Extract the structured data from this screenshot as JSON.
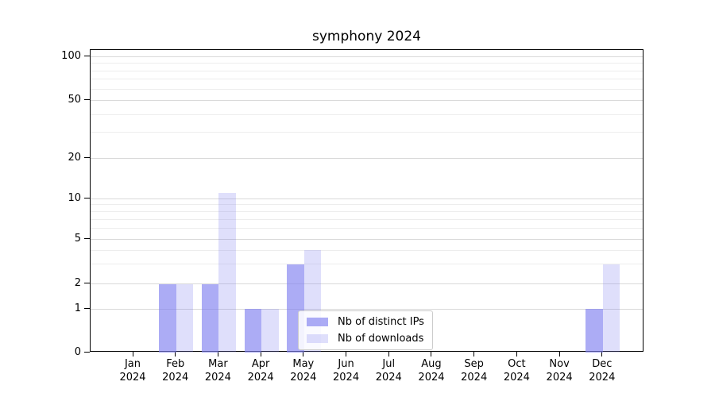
{
  "chart_data": {
    "type": "bar",
    "title": "symphony 2024",
    "categories": [
      "Jan",
      "Feb",
      "Mar",
      "Apr",
      "May",
      "Jun",
      "Jul",
      "Aug",
      "Sep",
      "Oct",
      "Nov",
      "Dec"
    ],
    "category_sublabel": "2024",
    "series": [
      {
        "name": "Nb of distinct IPs",
        "color": "rgba(128,128,240,0.65)",
        "values": [
          0,
          2,
          2,
          1,
          3,
          0,
          0,
          0,
          0,
          0,
          0,
          1
        ]
      },
      {
        "name": "Nb of downloads",
        "color": "rgba(128,128,240,0.25)",
        "values": [
          0,
          2,
          11,
          1,
          4,
          0,
          0,
          0,
          0,
          0,
          0,
          3
        ]
      }
    ],
    "y_axis": {
      "scale": "symlog",
      "major_ticks": [
        0,
        1,
        2,
        5,
        10,
        20,
        50,
        100
      ],
      "minor_gridlines": [
        3,
        4,
        6,
        7,
        8,
        9,
        30,
        40,
        60,
        70,
        80,
        90
      ],
      "range": [
        0,
        110
      ]
    },
    "x_axis": {
      "label_lines": 2
    },
    "legend": {
      "position": "lower center",
      "entries": [
        "Nb of distinct IPs",
        "Nb of downloads"
      ]
    },
    "grid": "horizontal",
    "colors": {
      "grid_major": "#d9d9d9",
      "grid_minor": "#ededed",
      "spine": "#000000",
      "background": "#ffffff"
    }
  }
}
